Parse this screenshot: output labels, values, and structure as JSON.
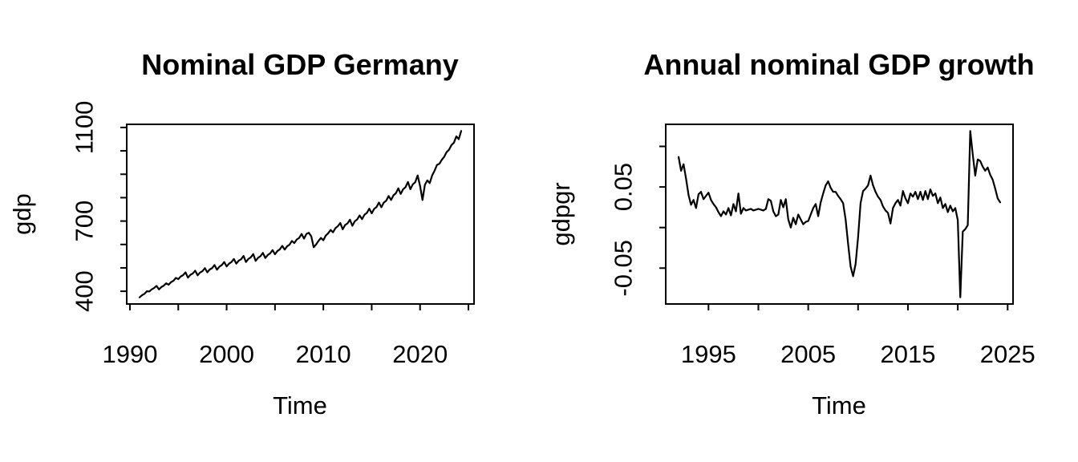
{
  "figure": {
    "background_color": "#ffffff",
    "line_color": "#000000",
    "kind": "R base-graphics, two quarterly time-series panels side by side"
  },
  "chart_data": [
    {
      "type": "line",
      "title": "Nominal GDP Germany",
      "xlabel": "Time",
      "ylabel": "gdp",
      "legend": "none",
      "grid": false,
      "x_start": 1991.0,
      "x_step": 0.25,
      "xlim": [
        1989.67,
        2025.58
      ],
      "ylim": [
        345.6,
        1113.4
      ],
      "xticks": [
        {
          "v": 1990,
          "label": "1990"
        },
        {
          "v": 1995,
          "label": ""
        },
        {
          "v": 2000,
          "label": "2000"
        },
        {
          "v": 2005,
          "label": ""
        },
        {
          "v": 2010,
          "label": "2010"
        },
        {
          "v": 2015,
          "label": ""
        },
        {
          "v": 2020,
          "label": "2020"
        },
        {
          "v": 2025,
          "label": ""
        }
      ],
      "yticks": [
        {
          "v": 400,
          "label": "400"
        },
        {
          "v": 500,
          "label": ""
        },
        {
          "v": 600,
          "label": ""
        },
        {
          "v": 700,
          "label": "700"
        },
        {
          "v": 800,
          "label": ""
        },
        {
          "v": 900,
          "label": ""
        },
        {
          "v": 1000,
          "label": ""
        },
        {
          "v": 1100,
          "label": "1100"
        }
      ],
      "values": [
        374,
        383,
        389,
        400,
        399,
        408,
        414,
        423,
        408,
        418,
        424,
        434,
        428,
        439,
        445,
        457,
        452,
        463,
        469,
        481,
        458,
        470,
        476,
        488,
        468,
        480,
        486,
        499,
        481,
        493,
        499,
        512,
        492,
        505,
        512,
        525,
        506,
        518,
        525,
        538,
        518,
        531,
        537,
        551,
        525,
        538,
        545,
        559,
        530,
        543,
        550,
        564,
        542,
        555,
        562,
        576,
        558,
        572,
        579,
        594,
        578,
        592,
        599,
        615,
        606,
        621,
        628,
        645,
        625,
        645,
        650,
        635,
        588,
        600,
        615,
        628,
        618,
        638,
        648,
        662,
        652,
        670,
        678,
        692,
        665,
        683,
        690,
        706,
        680,
        699,
        707,
        724,
        708,
        727,
        735,
        753,
        733,
        752,
        760,
        779,
        759,
        779,
        787,
        807,
        790,
        810,
        819,
        840,
        816,
        836,
        845,
        867,
        836,
        857,
        866,
        895,
        850,
        790,
        855,
        874,
        862,
        895,
        915,
        940,
        945,
        962,
        975,
        995,
        1005,
        1025,
        1035,
        1062,
        1050,
        1085
      ]
    },
    {
      "type": "line",
      "title": "Annual nominal GDP growth",
      "xlabel": "Time",
      "ylabel": "gdpgr",
      "legend": "none",
      "grid": false,
      "x_start": 1992.0,
      "x_step": 0.25,
      "xlim": [
        1990.71,
        2025.54
      ],
      "ylim": [
        -0.0942,
        0.1272
      ],
      "xticks": [
        {
          "v": 1995,
          "label": "1995"
        },
        {
          "v": 2000,
          "label": ""
        },
        {
          "v": 2005,
          "label": "2005"
        },
        {
          "v": 2010,
          "label": ""
        },
        {
          "v": 2015,
          "label": "2015"
        },
        {
          "v": 2020,
          "label": ""
        },
        {
          "v": 2025,
          "label": "2025"
        }
      ],
      "yticks": [
        {
          "v": -0.05,
          "label": "-0.05"
        },
        {
          "v": 0.0,
          "label": ""
        },
        {
          "v": 0.05,
          "label": "0.05"
        },
        {
          "v": 0.1,
          "label": ""
        }
      ],
      "values": [
        0.087,
        0.07,
        0.078,
        0.06,
        0.04,
        0.028,
        0.034,
        0.024,
        0.041,
        0.044,
        0.035,
        0.039,
        0.043,
        0.034,
        0.029,
        0.025,
        0.019,
        0.014,
        0.02,
        0.016,
        0.024,
        0.015,
        0.029,
        0.02,
        0.042,
        0.017,
        0.024,
        0.021,
        0.022,
        0.023,
        0.021,
        0.022,
        0.023,
        0.022,
        0.021,
        0.023,
        0.035,
        0.033,
        0.02,
        0.014,
        0.016,
        0.034,
        0.025,
        0.035,
        0.01,
        0.0,
        0.012,
        0.004,
        0.016,
        0.01,
        0.004,
        0.007,
        0.008,
        0.016,
        0.024,
        0.029,
        0.014,
        0.031,
        0.042,
        0.052,
        0.057,
        0.049,
        0.044,
        0.044,
        0.039,
        0.035,
        0.03,
        0.01,
        -0.02,
        -0.048,
        -0.06,
        -0.045,
        -0.012,
        0.03,
        0.045,
        0.048,
        0.052,
        0.064,
        0.052,
        0.044,
        0.038,
        0.034,
        0.026,
        0.021,
        0.018,
        0.005,
        0.024,
        0.03,
        0.034,
        0.027,
        0.045,
        0.036,
        0.03,
        0.042,
        0.038,
        0.044,
        0.035,
        0.044,
        0.034,
        0.045,
        0.035,
        0.047,
        0.039,
        0.042,
        0.03,
        0.037,
        0.024,
        0.029,
        0.019,
        0.027,
        0.02,
        0.024,
        0.009,
        -0.086,
        -0.005,
        -0.002,
        0.003,
        0.119,
        0.09,
        0.064,
        0.084,
        0.082,
        0.075,
        0.07,
        0.074,
        0.065,
        0.059,
        0.048,
        0.036,
        0.031
      ]
    }
  ]
}
